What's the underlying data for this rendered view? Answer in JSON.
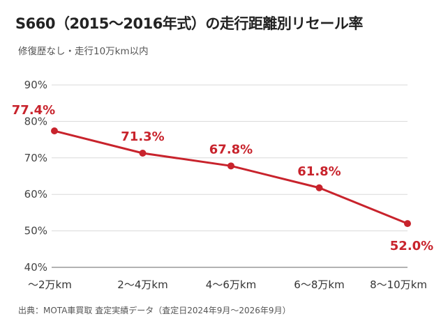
{
  "title": "S660（2015〜2016年式）の走行距離別リセール率",
  "subtitle": "修復歴なし・走行10万km以内",
  "source": "出典：MOTA車買取 査定実績データ（査定日2024年9月〜2026年9月）",
  "colors": {
    "series": "#c8232c",
    "grid": "#d9d9d9",
    "axis": "#999999"
  },
  "chart_data": {
    "type": "line",
    "categories": [
      "〜2万km",
      "2〜4万km",
      "4〜6万km",
      "6〜8万km",
      "8〜10万km"
    ],
    "series": [
      {
        "values": [
          77.4,
          71.3,
          67.8,
          61.8,
          52.0
        ]
      }
    ],
    "data_labels": [
      "77.4%",
      "71.3%",
      "67.8%",
      "61.8%",
      "52.0%"
    ],
    "yticks": [
      {
        "value": 40,
        "label": "40%"
      },
      {
        "value": 50,
        "label": "50%"
      },
      {
        "value": 60,
        "label": "60%"
      },
      {
        "value": 70,
        "label": "70%"
      },
      {
        "value": 80,
        "label": "80%"
      },
      {
        "value": 90,
        "label": "90%"
      }
    ],
    "ylim": [
      40,
      90
    ],
    "grid": true,
    "legend": "none"
  }
}
